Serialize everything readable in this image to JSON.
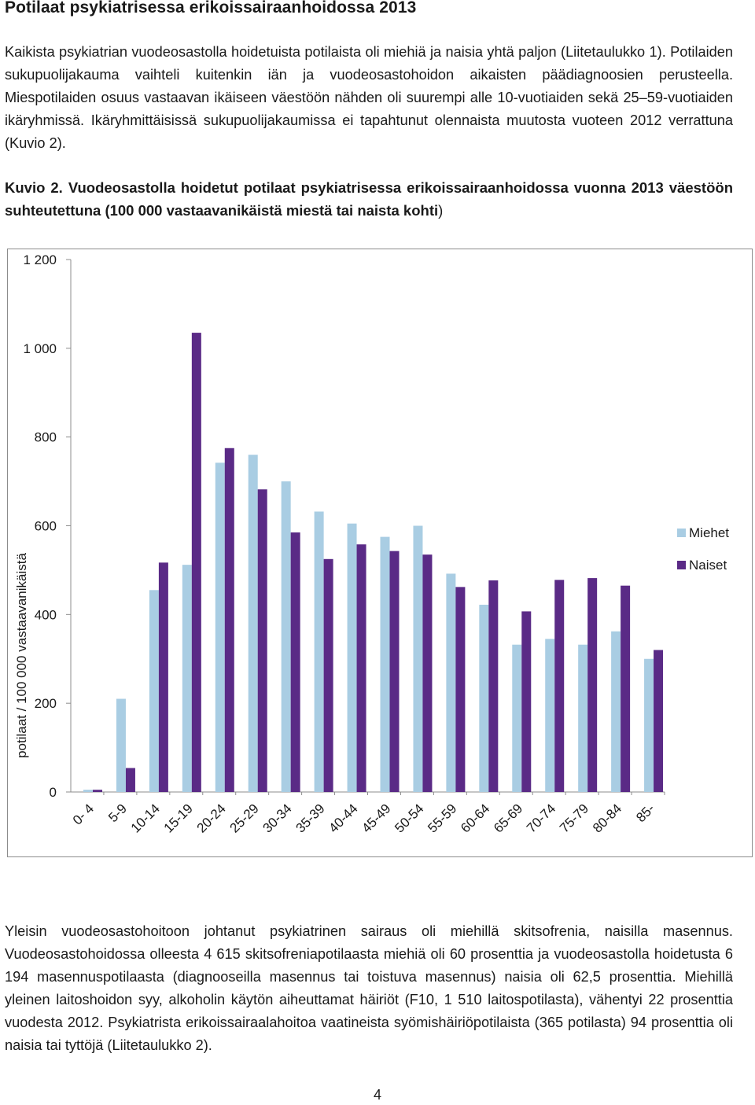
{
  "heading": "Potilaat psykiatrisessa erikoissairaanhoidossa 2013",
  "intro_paragraph": "Kaikista psykiatrian vuodeosastolla hoidetuista potilaista oli miehiä ja naisia yhtä paljon (Liitetaulukko 1). Potilaiden sukupuolijakauma vaihteli kuitenkin iän ja vuodeosastohoidon aikaisten päädiagnoosien perusteella. Miespotilaiden osuus vastaavan ikäiseen väestöön nähden oli suurempi alle 10-vuotiaiden sekä 25–59-vuotiaiden ikäryhmissä. Ikäryhmittäisissä sukupuolijakaumissa ei tapahtunut olennaista muutosta vuoteen 2012 verrattuna (Kuvio 2).",
  "figure_caption": {
    "bold": "Kuvio 2. Vuodeosastolla hoidetut potilaat psykiatrisessa erikoissairaanhoidossa vuonna 2013 väestöön suhteutettuna (100 000 vastaavanikäistä miestä tai naista kohti",
    "closing": ")"
  },
  "chart_data": {
    "type": "bar",
    "categories": [
      "0- 4",
      "5-9",
      "10-14",
      "15-19",
      "20-24",
      "25-29",
      "30-34",
      "35-39",
      "40-44",
      "45-49",
      "50-54",
      "55-59",
      "60-64",
      "65-69",
      "70-74",
      "75-79",
      "80-84",
      "85-"
    ],
    "series": [
      {
        "name": "Miehet",
        "color": "#a9cde3",
        "values": [
          5,
          210,
          455,
          512,
          742,
          760,
          700,
          632,
          605,
          575,
          600,
          492,
          422,
          332,
          345,
          332,
          362,
          300
        ]
      },
      {
        "name": "Naiset",
        "color": "#5a2a86",
        "values": [
          5,
          54,
          517,
          1035,
          775,
          682,
          585,
          525,
          558,
          543,
          535,
          462,
          477,
          407,
          478,
          482,
          465,
          320
        ]
      }
    ],
    "xlabel": "",
    "ylabel": "potilaat / 100 000 vastaavanikäistä",
    "ylim": [
      0,
      1200
    ],
    "yticks": [
      0,
      200,
      400,
      600,
      800,
      1000,
      1200
    ],
    "ytick_labels": [
      "0",
      "200",
      "400",
      "600",
      "800",
      "1 000",
      "1 200"
    ],
    "grid": false,
    "legend_position": "right"
  },
  "outro_paragraph": "Yleisin vuodeosastohoitoon johtanut psykiatrinen sairaus oli miehillä skitsofrenia, naisilla masennus. Vuodeosastohoidossa olleesta 4 615 skitsofreniapotilaasta miehiä oli 60 prosenttia ja vuodeosastolla hoidetusta 6 194 masennuspotilaasta (diagnooseilla masennus tai toistuva masennus) naisia oli 62,5 prosenttia. Miehillä yleinen laitoshoidon syy, alkoholin käytön aiheuttamat häiriöt (F10, 1 510 laitospotilasta), vähentyi 22 prosenttia vuodesta 2012. Psykiatrista erikoissairaalahoitoa vaatineista syömishäiriöpotilaista (365 potilasta) 94 prosenttia oli naisia tai tyttöjä (Liitetaulukko 2).",
  "page_number": "4"
}
